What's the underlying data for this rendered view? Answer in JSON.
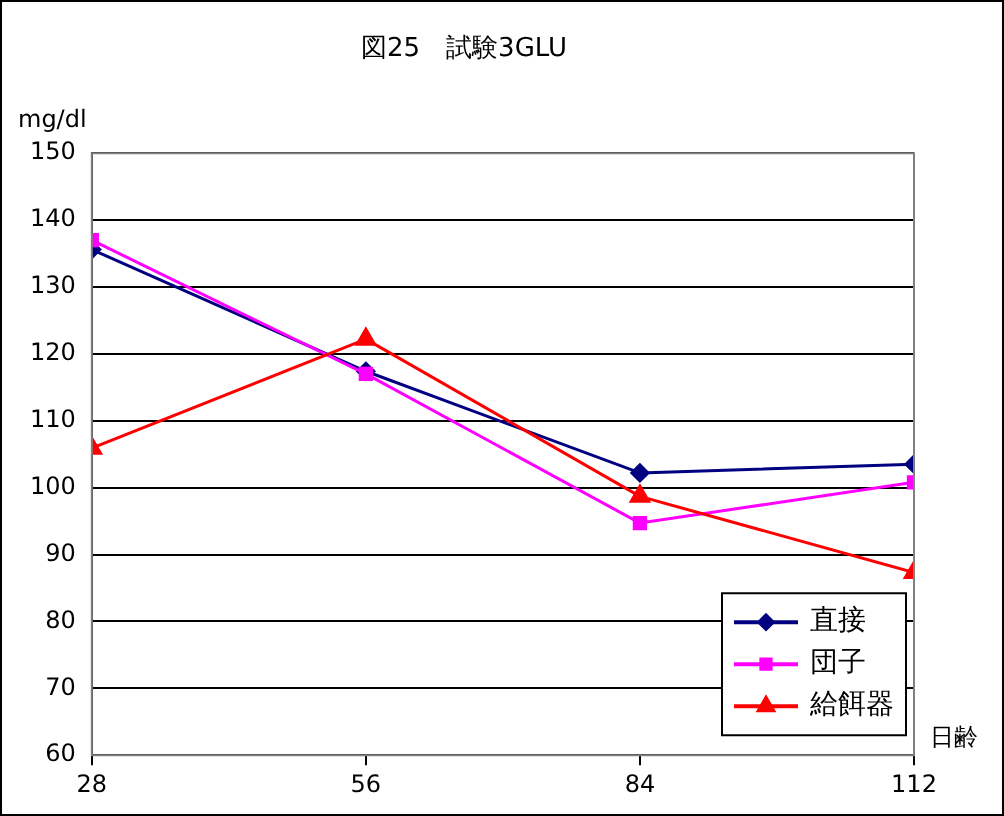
{
  "chart_data": {
    "type": "line",
    "title": "図25　試験3GLU",
    "xlabel": "日齢",
    "ylabel": "mg/dl",
    "x": [
      28,
      56,
      84,
      112
    ],
    "xlim": [
      28,
      112
    ],
    "xticks": [
      28,
      56,
      84,
      112
    ],
    "ylim": [
      60,
      150
    ],
    "yticks": [
      60,
      70,
      80,
      90,
      100,
      110,
      120,
      130,
      140,
      150
    ],
    "grid": "y",
    "legend": "bottom right",
    "series": [
      {
        "name": "直接",
        "color": "#000080",
        "marker": "diamond",
        "values": [
          135.6,
          117.4,
          102.2,
          103.5
        ]
      },
      {
        "name": "団子",
        "color": "#ff00ff",
        "marker": "square",
        "values": [
          137,
          117,
          94.7,
          100.8
        ]
      },
      {
        "name": "給餌器",
        "color": "#ff0000",
        "marker": "triangle",
        "values": [
          105.9,
          122.2,
          98.7,
          87.3
        ]
      }
    ]
  }
}
